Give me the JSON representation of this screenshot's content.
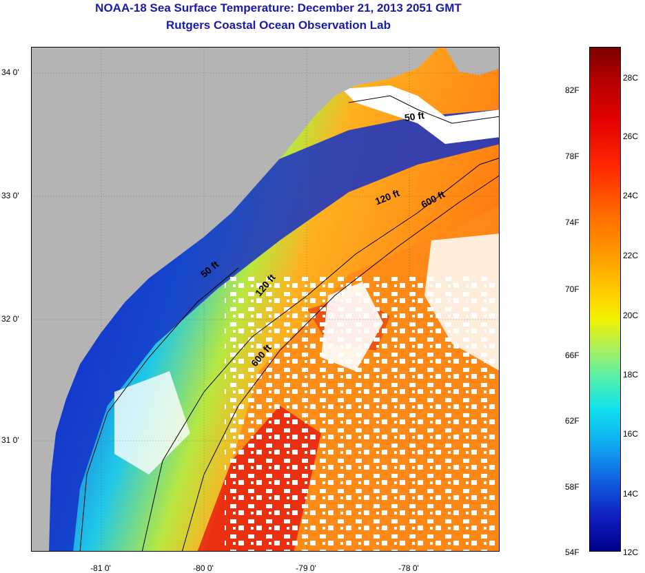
{
  "title": {
    "line1": "NOAA-18 Sea Surface Temperature:  December 21, 2013 2051 GMT",
    "line2": "Rutgers Coastal Ocean Observation Lab"
  },
  "map": {
    "lat_labels": [
      "34 0'",
      "33 0'",
      "32 0'",
      "31 0'"
    ],
    "lat_values": [
      34.0,
      33.0,
      32.0,
      31.0
    ],
    "lon_labels": [
      "-81 0'",
      "-80 0'",
      "-79 0'",
      "-78 0'"
    ],
    "lon_values": [
      -81.0,
      -80.0,
      -79.0,
      -78.0
    ],
    "lat_range": [
      30.2,
      34.2
    ],
    "lon_range": [
      -81.65,
      -77.05
    ],
    "isobath_labels": [
      "50 ft",
      "120 ft",
      "600 ft",
      "50 ft",
      "120 ft",
      "600 ft"
    ],
    "colors": {
      "land": "#b4b4b4",
      "cloud": "#ffffff",
      "nearshore": "#0a1aa0",
      "shelf": "#20b8f0",
      "midshelf": "#b8e840",
      "gulfstream": "#ff7a10",
      "core": "#e81810"
    }
  },
  "colorbar": {
    "fahrenheit_labels": [
      "82F",
      "78F",
      "74F",
      "70F",
      "66F",
      "62F",
      "58F",
      "54F"
    ],
    "celsius_labels": [
      "28C",
      "26C",
      "24C",
      "22C",
      "20C",
      "18C",
      "16C",
      "14C",
      "12C"
    ],
    "range_c": [
      12,
      29.5
    ]
  }
}
